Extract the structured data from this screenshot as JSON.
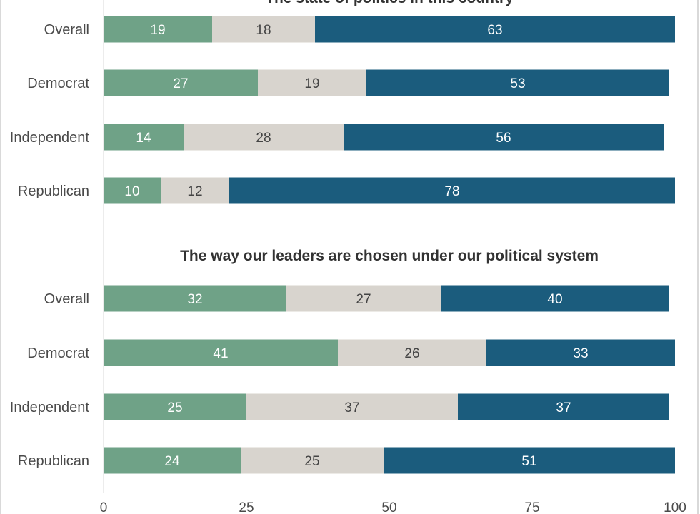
{
  "chart_data": {
    "type": "bar",
    "orientation": "horizontal",
    "stacked": true,
    "xlim": [
      0,
      100
    ],
    "x_ticks": [
      0,
      25,
      50,
      75,
      100
    ],
    "grid": false,
    "legend": "none",
    "colors": [
      "#6fa287",
      "#d8d4ce",
      "#1b5c7d"
    ],
    "label_colors": [
      "#ffffff",
      "#444444",
      "#ffffff"
    ],
    "panels": [
      {
        "title": "The state of politics in this country",
        "categories": [
          "Overall",
          "Democrat",
          "Independent",
          "Republican"
        ],
        "series": [
          {
            "values": [
              19,
              27,
              14,
              10
            ]
          },
          {
            "values": [
              18,
              19,
              28,
              12
            ]
          },
          {
            "values": [
              63,
              53,
              56,
              78
            ]
          }
        ]
      },
      {
        "title": "The way our leaders are chosen under our political system",
        "categories": [
          "Overall",
          "Democrat",
          "Independent",
          "Republican"
        ],
        "series": [
          {
            "values": [
              32,
              41,
              25,
              24
            ]
          },
          {
            "values": [
              27,
              26,
              37,
              25
            ]
          },
          {
            "values": [
              40,
              33,
              37,
              51
            ]
          }
        ]
      }
    ]
  }
}
